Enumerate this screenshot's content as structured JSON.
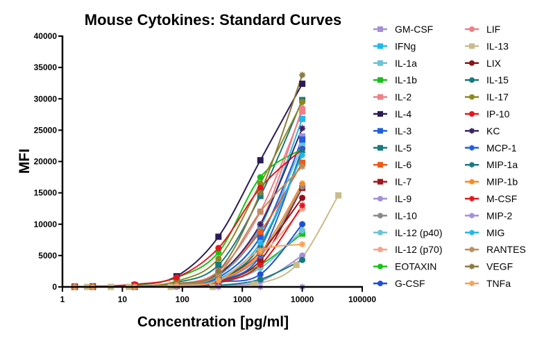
{
  "chart_data": {
    "type": "scatter",
    "title": "Mouse Cytokines: Standard Curves",
    "xlabel": "Concentration [pg/ml]",
    "ylabel": "MFI",
    "xscale": "log",
    "xlim": [
      1,
      100000
    ],
    "ylim": [
      0,
      40000
    ],
    "x_ticks": [
      1,
      10,
      100,
      1000,
      10000,
      100000
    ],
    "x_tick_labels": [
      "1",
      "10",
      "100",
      "1000",
      "10000",
      "100000"
    ],
    "y_ticks": [
      0,
      5000,
      10000,
      15000,
      20000,
      25000,
      30000,
      35000,
      40000
    ],
    "y_tick_labels": [
      "0",
      "5000",
      "10000",
      "15000",
      "20000",
      "25000",
      "30000",
      "35000",
      "40000"
    ],
    "grid": false,
    "legend_position": "right",
    "x": [
      1.6,
      3.2,
      16,
      80,
      400,
      2000,
      10000
    ],
    "series": [
      {
        "name": "GM-CSF",
        "color": "#a38fd9",
        "marker": "square",
        "values": [
          0,
          0,
          30,
          200,
          900,
          6000,
          24000
        ]
      },
      {
        "name": "IFNg",
        "color": "#21b8ee",
        "marker": "square",
        "values": [
          0,
          0,
          40,
          300,
          1800,
          9500,
          26800
        ]
      },
      {
        "name": "IL-1a",
        "color": "#6bc4d4",
        "marker": "square",
        "values": [
          0,
          0,
          30,
          250,
          1500,
          8000,
          22500
        ]
      },
      {
        "name": "IL-1b",
        "color": "#1ebd1e",
        "marker": "square",
        "values": [
          0,
          0,
          20,
          150,
          700,
          3500,
          8500
        ]
      },
      {
        "name": "IL-2",
        "color": "#f07f86",
        "marker": "square",
        "values": [
          0,
          0,
          60,
          500,
          2500,
          12000,
          28000
        ]
      },
      {
        "name": "IL-4",
        "color": "#2b1b57",
        "marker": "square",
        "values": [
          50,
          80,
          300,
          1700,
          8000,
          20200,
          32400
        ]
      },
      {
        "name": "IL-3",
        "color": "#1f5fe0",
        "marker": "square",
        "values": [
          0,
          0,
          40,
          300,
          1500,
          8000,
          23500
        ]
      },
      {
        "name": "IL-5",
        "color": "#177a7e",
        "marker": "square",
        "values": [
          0,
          0,
          80,
          700,
          3500,
          14500,
          29800
        ]
      },
      {
        "name": "IL-6",
        "color": "#f05a18",
        "marker": "square",
        "values": [
          0,
          0,
          50,
          400,
          2000,
          8800,
          19800
        ]
      },
      {
        "name": "IL-7",
        "color": "#a0161c",
        "marker": "square",
        "values": [
          0,
          0,
          30,
          200,
          900,
          4200,
          15800
        ]
      },
      {
        "name": "IL-9",
        "color": "#a38fd9",
        "marker": "circle",
        "values": [
          0,
          0,
          10,
          50,
          200,
          900,
          5000
        ]
      },
      {
        "name": "IL-10",
        "color": "#8a8a8a",
        "marker": "circle",
        "values": [
          0,
          0,
          30,
          200,
          1000,
          5000,
          16000
        ]
      },
      {
        "name": "IL-12 (p40)",
        "color": "#6bc4d4",
        "marker": "circle",
        "values": [
          0,
          0,
          20,
          120,
          600,
          3000,
          9000
        ]
      },
      {
        "name": "IL-12 (p70)",
        "color": "#f5a38a",
        "marker": "circle",
        "values": [
          0,
          0,
          30,
          200,
          1000,
          5000,
          12500
        ]
      },
      {
        "name": "EOTAXIN",
        "color": "#14c414",
        "marker": "circle",
        "values": [
          30,
          60,
          300,
          1500,
          5500,
          17500,
          22000
        ]
      },
      {
        "name": "G-CSF",
        "color": "#1f4fd6",
        "marker": "circle",
        "values": [
          20,
          40,
          60,
          120,
          800,
          2000,
          10000
        ]
      },
      {
        "name": "LIF",
        "color": "#f07f86",
        "marker": "circle",
        "values": [
          0,
          0,
          50,
          400,
          2000,
          10000,
          28500
        ]
      },
      {
        "name": "IL-13",
        "color": "#c9bc8a",
        "marker": "square",
        "x": [
          2.56,
          6.4,
          12.8,
          64,
          320,
          1600,
          8000,
          40000
        ],
        "values": [
          0,
          0,
          0,
          0,
          0,
          400,
          3500,
          14600
        ]
      },
      {
        "name": "LIX",
        "color": "#8c1416",
        "marker": "circle",
        "values": [
          0,
          0,
          30,
          200,
          1000,
          5500,
          14200
        ]
      },
      {
        "name": "IL-15",
        "color": "#177a7e",
        "marker": "circle",
        "values": [
          0,
          0,
          10,
          50,
          250,
          1200,
          4300
        ]
      },
      {
        "name": "IL-17",
        "color": "#8c8a1f",
        "marker": "circle",
        "values": [
          0,
          0,
          100,
          900,
          4500,
          16500,
          29500
        ]
      },
      {
        "name": "IP-10",
        "color": "#e8141c",
        "marker": "circle",
        "values": [
          30,
          60,
          400,
          1500,
          6200,
          15800,
          22000
        ]
      },
      {
        "name": "KC",
        "color": "#3a2466",
        "marker": "star",
        "values": [
          0,
          0,
          50,
          400,
          2000,
          10000,
          25300
        ]
      },
      {
        "name": "MCP-1",
        "color": "#1f5fe0",
        "marker": "star",
        "values": [
          0,
          0,
          30,
          200,
          1000,
          5000,
          22000
        ]
      },
      {
        "name": "MIP-1a",
        "color": "#177a7e",
        "marker": "star",
        "values": [
          0,
          0,
          30,
          200,
          1200,
          6500,
          21500
        ]
      },
      {
        "name": "MIP-1b",
        "color": "#f58a1f",
        "marker": "star",
        "values": [
          0,
          0,
          30,
          200,
          1000,
          5500,
          16500
        ]
      },
      {
        "name": "M-CSF",
        "color": "#e8141c",
        "marker": "star",
        "values": [
          0,
          0,
          20,
          150,
          700,
          3500,
          13000
        ]
      },
      {
        "name": "MIP-2",
        "color": "#a38fd9",
        "marker": "star",
        "values": [
          0,
          0,
          0,
          0,
          0,
          0,
          0
        ]
      },
      {
        "name": "MIG",
        "color": "#21b8ee",
        "marker": "star",
        "values": [
          0,
          0,
          30,
          200,
          1200,
          7000,
          21000
        ]
      },
      {
        "name": "RANTES",
        "color": "#b8905a",
        "marker": "star",
        "values": [
          0,
          0,
          60,
          400,
          2000,
          12000,
          19200
        ]
      },
      {
        "name": "VEGF",
        "color": "#8a7a3e",
        "marker": "star",
        "values": [
          0,
          0,
          60,
          500,
          2500,
          15000,
          33800
        ]
      },
      {
        "name": "TNFa",
        "color": "#f5a35a",
        "marker": "star",
        "values": [
          0,
          0,
          30,
          200,
          1000,
          5800,
          6800
        ]
      }
    ]
  }
}
